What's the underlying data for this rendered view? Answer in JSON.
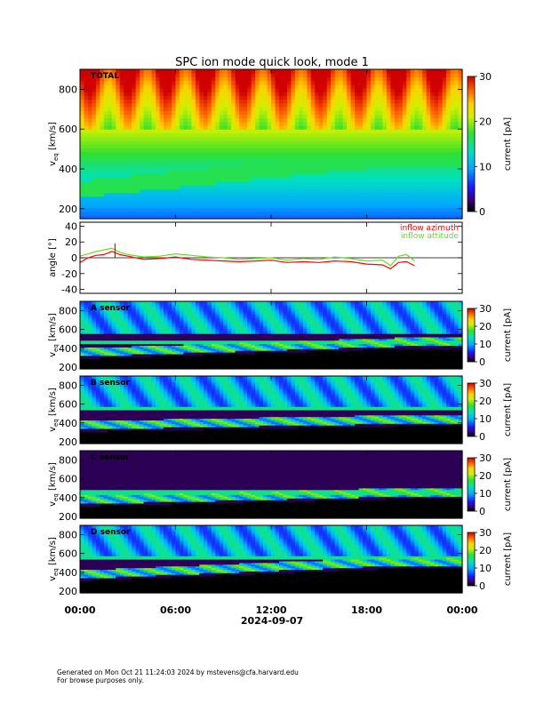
{
  "chart_data": {
    "type": "heatmap",
    "title": "SPC ion mode quick look, mode 1",
    "xlabel": "2024-09-07",
    "x_tick_labels": [
      "00:00",
      "06:00",
      "12:00",
      "18:00",
      "00:00"
    ],
    "xlim_hours": [
      0,
      24
    ],
    "grid": false,
    "panels": [
      {
        "kind": "spectrogram",
        "label": "TOTAL",
        "ylabel_main": "v",
        "ylabel_sub": "eq",
        "ylabel_unit": "[km/s]",
        "ylim": [
          150,
          900
        ],
        "y_ticks": [
          200,
          400,
          600,
          800
        ],
        "colorbar": {
          "label": "current [pA]",
          "range": [
            0,
            30
          ],
          "ticks": [
            0,
            10,
            20,
            30
          ]
        },
        "features": {
          "core_speed_kms": [
            300,
            460
          ],
          "bright_band_kms": 460,
          "high_energy_stripes": true
        }
      },
      {
        "kind": "line",
        "ylabel": "angle [°]",
        "ylim": [
          -45,
          45
        ],
        "y_ticks": [
          -40,
          -20,
          0,
          20,
          40
        ],
        "zero_line": true,
        "legend": "top-right",
        "series": [
          {
            "name": "inflow azimuth",
            "color": "#ff0000",
            "x": [
              0.0,
              0.5,
              1.0,
              1.5,
              2.0,
              2.5,
              3.0,
              4.0,
              5.0,
              6.0,
              7.0,
              8.0,
              9.0,
              10.0,
              11.0,
              12.0,
              13.0,
              14.0,
              15.0,
              16.0,
              17.0,
              18.0,
              19.0,
              19.5,
              20.0,
              20.5,
              21.0
            ],
            "y": [
              -6,
              0,
              3,
              4,
              8,
              4,
              2,
              -2,
              -1,
              1,
              -2,
              -3,
              -4,
              -5,
              -4,
              -3,
              -6,
              -5,
              -6,
              -4,
              -5,
              -8,
              -9,
              -14,
              -6,
              -5,
              -10
            ]
          },
          {
            "name": "inflow attitude",
            "color": "#66dd22",
            "x": [
              0.0,
              0.5,
              1.0,
              1.5,
              2.0,
              2.5,
              3.0,
              4.0,
              5.0,
              6.0,
              7.0,
              8.0,
              9.0,
              10.0,
              11.0,
              12.0,
              13.0,
              14.0,
              15.0,
              16.0,
              17.0,
              18.0,
              19.0,
              19.5,
              20.0,
              20.5,
              21.0
            ],
            "y": [
              2,
              5,
              8,
              10,
              12,
              7,
              4,
              1,
              2,
              5,
              3,
              1,
              0,
              -2,
              -1,
              0,
              -3,
              -1,
              -2,
              1,
              -1,
              -4,
              -3,
              -10,
              2,
              4,
              -4
            ]
          }
        ],
        "spikes": [
          {
            "x": 2.2,
            "y": 18
          }
        ]
      },
      {
        "kind": "spectrogram",
        "label": "A sensor",
        "ylabel_main": "v",
        "ylabel_sub": "eq",
        "ylabel_unit": "[km/s]",
        "ylim": [
          180,
          900
        ],
        "y_ticks": [
          200,
          400,
          600,
          800
        ],
        "colorbar": {
          "label": "current [pA]",
          "range": [
            0,
            30
          ],
          "ticks": [
            0,
            10,
            20,
            30
          ]
        },
        "features": {
          "core_speed_kms": [
            360,
            470
          ],
          "bright_band_kms": 470,
          "high_energy_stripes": true
        }
      },
      {
        "kind": "spectrogram",
        "label": "B sensor",
        "ylabel_main": "v",
        "ylabel_sub": "eq",
        "ylabel_unit": "[km/s]",
        "ylim": [
          180,
          900
        ],
        "y_ticks": [
          200,
          400,
          600,
          800
        ],
        "colorbar": {
          "label": "current [pA]",
          "range": [
            0,
            30
          ],
          "ticks": [
            0,
            10,
            20,
            30
          ]
        },
        "features": {
          "core_speed_kms": [
            380,
            440
          ],
          "bright_band_kms": 560,
          "high_energy_stripes": true
        }
      },
      {
        "kind": "spectrogram",
        "label": "C sensor",
        "ylabel_main": "v",
        "ylabel_sub": "eq",
        "ylabel_unit": "[km/s]",
        "ylim": [
          180,
          900
        ],
        "y_ticks": [
          200,
          400,
          600,
          800
        ],
        "colorbar": {
          "label": "current [pA]",
          "range": [
            0,
            30
          ],
          "ticks": [
            0,
            10,
            20,
            30
          ]
        },
        "features": {
          "core_speed_kms": [
            380,
            460
          ],
          "bright_band_kms": 460,
          "high_energy_stripes": false
        }
      },
      {
        "kind": "spectrogram",
        "label": "D sensor",
        "ylabel_main": "v",
        "ylabel_sub": "eq",
        "ylabel_unit": "[km/s]",
        "ylim": [
          180,
          900
        ],
        "y_ticks": [
          200,
          400,
          600,
          800
        ],
        "colorbar": {
          "label": "current [pA]",
          "range": [
            0,
            30
          ],
          "ticks": [
            0,
            10,
            20,
            30
          ]
        },
        "features": {
          "core_speed_kms": [
            380,
            520
          ],
          "bright_band_kms": 560,
          "high_energy_stripes": true
        }
      }
    ]
  },
  "footer": {
    "line1": "Generated on Mon Oct 21 11:24:03 2024 by mstevens@cfa.harvard.edu",
    "line2": "For browse purposes only."
  }
}
